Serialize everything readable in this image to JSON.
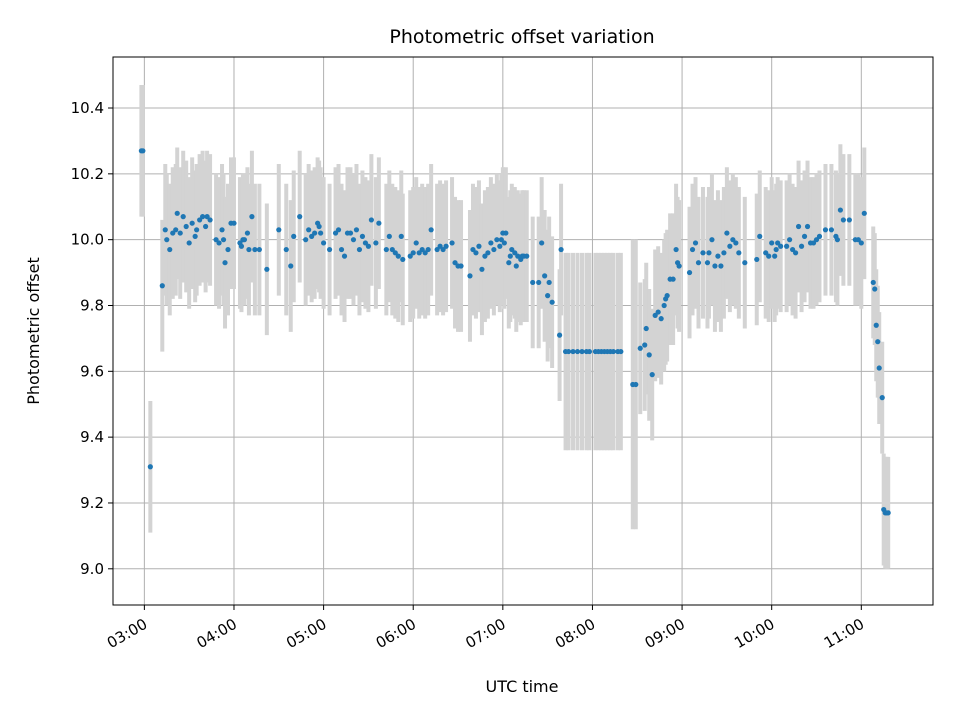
{
  "chart_data": {
    "type": "scatter",
    "title": "Photometric offset variation",
    "xlabel": "UTC time",
    "ylabel": "Photometric offset",
    "xlim": [
      "02:39",
      "11:48"
    ],
    "ylim": [
      8.89,
      10.555
    ],
    "x_ticks": [
      "03:00",
      "04:00",
      "05:00",
      "06:00",
      "07:00",
      "08:00",
      "09:00",
      "10:00",
      "11:00"
    ],
    "y_ticks": [
      9.0,
      9.2,
      9.4,
      9.6,
      9.8,
      10.0,
      10.2,
      10.4
    ],
    "grid": true,
    "marker_color": "#1f77b4",
    "errorbar_color": "#d3d3d3",
    "series": [
      {
        "error": 0.2,
        "points": [
          [
            "02:58",
            10.27
          ],
          [
            "02:59",
            10.27
          ],
          [
            "03:04",
            9.31
          ],
          [
            "03:12",
            9.86
          ],
          [
            "03:14",
            10.03
          ],
          [
            "03:15",
            10.0
          ],
          [
            "03:17",
            9.97
          ],
          [
            "03:19",
            10.02
          ],
          [
            "03:21",
            10.03
          ],
          [
            "03:22",
            10.08
          ],
          [
            "03:24",
            10.02
          ],
          [
            "03:26",
            10.07
          ],
          [
            "03:28",
            10.04
          ],
          [
            "03:30",
            9.99
          ],
          [
            "03:32",
            10.05
          ],
          [
            "03:34",
            10.01
          ],
          [
            "03:35",
            10.03
          ],
          [
            "03:37",
            10.06
          ],
          [
            "03:39",
            10.07
          ],
          [
            "03:41",
            10.04
          ],
          [
            "03:42",
            10.07
          ],
          [
            "03:44",
            10.06
          ],
          [
            "03:48",
            10.0
          ],
          [
            "03:50",
            9.99
          ],
          [
            "03:52",
            10.03
          ],
          [
            "03:53",
            10.0
          ],
          [
            "03:54",
            9.93
          ],
          [
            "03:56",
            9.97
          ],
          [
            "03:58",
            10.05
          ],
          [
            "04:00",
            10.05
          ],
          [
            "04:04",
            9.99
          ],
          [
            "04:05",
            9.98
          ],
          [
            "04:06",
            10.0
          ],
          [
            "04:07",
            10.0
          ],
          [
            "04:09",
            10.02
          ],
          [
            "04:10",
            9.97
          ],
          [
            "04:12",
            10.07
          ],
          [
            "04:14",
            9.97
          ],
          [
            "04:17",
            9.97
          ],
          [
            "04:22",
            9.91
          ],
          [
            "04:30",
            10.03
          ],
          [
            "04:35",
            9.97
          ],
          [
            "04:38",
            9.92
          ],
          [
            "04:40",
            10.01
          ],
          [
            "04:44",
            10.07
          ],
          [
            "04:48",
            10.0
          ],
          [
            "04:50",
            10.03
          ],
          [
            "04:52",
            10.01
          ],
          [
            "04:54",
            10.02
          ],
          [
            "04:56",
            10.05
          ],
          [
            "04:57",
            10.04
          ],
          [
            "04:58",
            10.02
          ],
          [
            "05:00",
            9.99
          ],
          [
            "05:04",
            9.97
          ],
          [
            "05:08",
            10.02
          ],
          [
            "05:10",
            10.03
          ],
          [
            "05:12",
            9.97
          ],
          [
            "05:14",
            9.95
          ],
          [
            "05:16",
            10.02
          ],
          [
            "05:18",
            10.02
          ],
          [
            "05:20",
            10.0
          ],
          [
            "05:22",
            10.03
          ],
          [
            "05:24",
            9.97
          ],
          [
            "05:26",
            10.01
          ],
          [
            "05:28",
            9.99
          ],
          [
            "05:30",
            9.98
          ],
          [
            "05:32",
            10.06
          ],
          [
            "05:35",
            9.99
          ],
          [
            "05:37",
            10.05
          ],
          [
            "05:42",
            9.97
          ],
          [
            "05:44",
            10.01
          ],
          [
            "05:46",
            9.97
          ],
          [
            "05:48",
            9.96
          ],
          [
            "05:50",
            9.95
          ],
          [
            "05:52",
            10.01
          ],
          [
            "05:53",
            9.94
          ],
          [
            "05:58",
            9.95
          ],
          [
            "06:00",
            9.96
          ],
          [
            "06:02",
            9.99
          ],
          [
            "06:04",
            9.96
          ],
          [
            "06:06",
            9.97
          ],
          [
            "06:08",
            9.96
          ],
          [
            "06:10",
            9.97
          ],
          [
            "06:12",
            10.03
          ],
          [
            "06:16",
            9.97
          ],
          [
            "06:18",
            9.98
          ],
          [
            "06:20",
            9.97
          ],
          [
            "06:22",
            9.98
          ],
          [
            "06:26",
            9.99
          ],
          [
            "06:28",
            9.93
          ],
          [
            "06:30",
            9.92
          ],
          [
            "06:32",
            9.92
          ],
          [
            "06:38",
            9.89
          ],
          [
            "06:40",
            9.97
          ],
          [
            "06:42",
            9.96
          ],
          [
            "06:44",
            9.98
          ],
          [
            "06:46",
            9.91
          ],
          [
            "06:48",
            9.95
          ],
          [
            "06:50",
            9.96
          ],
          [
            "06:52",
            9.99
          ],
          [
            "06:54",
            9.97
          ],
          [
            "06:56",
            10.0
          ],
          [
            "06:58",
            9.98
          ],
          [
            "06:59",
            10.0
          ],
          [
            "07:00",
            10.02
          ],
          [
            "07:01",
            9.99
          ],
          [
            "07:02",
            10.02
          ],
          [
            "07:04",
            9.93
          ],
          [
            "07:05",
            9.95
          ],
          [
            "07:06",
            9.97
          ],
          [
            "07:08",
            9.96
          ],
          [
            "07:09",
            9.92
          ],
          [
            "07:10",
            9.95
          ],
          [
            "07:12",
            9.94
          ],
          [
            "07:13",
            9.95
          ],
          [
            "07:14",
            9.95
          ],
          [
            "07:16",
            9.95
          ],
          [
            "07:20",
            9.87
          ],
          [
            "07:24",
            9.87
          ],
          [
            "07:26",
            9.99
          ],
          [
            "07:28",
            9.89
          ],
          [
            "07:30",
            9.83
          ],
          [
            "07:31",
            9.87
          ],
          [
            "07:33",
            9.81
          ],
          [
            "07:38",
            9.71
          ],
          [
            "07:39",
            9.97
          ]
        ]
      },
      {
        "error": 0.3,
        "points": [
          [
            "07:42",
            9.66
          ],
          [
            "07:44",
            9.66
          ],
          [
            "07:47",
            9.66
          ],
          [
            "07:50",
            9.66
          ],
          [
            "07:53",
            9.66
          ],
          [
            "07:56",
            9.66
          ],
          [
            "07:58",
            9.66
          ],
          [
            "08:02",
            9.66
          ],
          [
            "08:04",
            9.66
          ],
          [
            "08:06",
            9.66
          ],
          [
            "08:08",
            9.66
          ],
          [
            "08:10",
            9.66
          ],
          [
            "08:12",
            9.66
          ],
          [
            "08:14",
            9.66
          ],
          [
            "08:17",
            9.66
          ],
          [
            "08:19",
            9.66
          ]
        ]
      },
      {
        "error": 0.44,
        "points": [
          [
            "08:27",
            9.56
          ],
          [
            "08:29",
            9.56
          ]
        ]
      },
      {
        "error": 0.2,
        "points": [
          [
            "08:32",
            9.67
          ],
          [
            "08:35",
            9.68
          ],
          [
            "08:36",
            9.73
          ],
          [
            "08:38",
            9.65
          ],
          [
            "08:40",
            9.59
          ],
          [
            "08:42",
            9.77
          ],
          [
            "08:44",
            9.78
          ],
          [
            "08:46",
            9.76
          ],
          [
            "08:48",
            9.8
          ],
          [
            "08:49",
            9.82
          ],
          [
            "08:50",
            9.83
          ],
          [
            "08:52",
            9.88
          ],
          [
            "08:54",
            9.88
          ],
          [
            "08:56",
            9.97
          ],
          [
            "08:57",
            9.93
          ],
          [
            "08:58",
            9.92
          ],
          [
            "09:05",
            9.9
          ],
          [
            "09:07",
            9.97
          ],
          [
            "09:09",
            9.99
          ],
          [
            "09:11",
            9.93
          ],
          [
            "09:14",
            9.96
          ],
          [
            "09:17",
            9.93
          ],
          [
            "09:18",
            9.96
          ],
          [
            "09:20",
            10.0
          ],
          [
            "09:22",
            9.92
          ],
          [
            "09:24",
            9.95
          ],
          [
            "09:26",
            9.92
          ],
          [
            "09:28",
            9.96
          ],
          [
            "09:30",
            10.02
          ],
          [
            "09:32",
            9.98
          ],
          [
            "09:34",
            10.0
          ],
          [
            "09:36",
            9.99
          ],
          [
            "09:38",
            9.96
          ],
          [
            "09:42",
            9.93
          ],
          [
            "09:50",
            9.94
          ],
          [
            "09:52",
            10.01
          ],
          [
            "09:56",
            9.96
          ],
          [
            "09:58",
            9.95
          ],
          [
            "10:00",
            9.99
          ],
          [
            "10:02",
            9.95
          ],
          [
            "10:03",
            9.97
          ],
          [
            "10:04",
            9.99
          ],
          [
            "10:06",
            9.98
          ],
          [
            "10:10",
            9.98
          ],
          [
            "10:12",
            10.0
          ],
          [
            "10:14",
            9.97
          ],
          [
            "10:16",
            9.96
          ],
          [
            "10:18",
            10.04
          ],
          [
            "10:20",
            9.98
          ],
          [
            "10:22",
            10.01
          ],
          [
            "10:24",
            10.04
          ],
          [
            "10:26",
            9.99
          ],
          [
            "10:28",
            9.99
          ],
          [
            "10:30",
            10.0
          ],
          [
            "10:32",
            10.01
          ],
          [
            "10:36",
            10.03
          ],
          [
            "10:40",
            10.03
          ],
          [
            "10:43",
            10.01
          ],
          [
            "10:44",
            10.0
          ],
          [
            "10:46",
            10.09
          ],
          [
            "10:48",
            10.06
          ],
          [
            "10:52",
            10.06
          ],
          [
            "10:56",
            10.0
          ],
          [
            "10:58",
            10.0
          ],
          [
            "11:00",
            9.99
          ],
          [
            "11:02",
            10.08
          ]
        ]
      },
      {
        "error": 0.17,
        "points": [
          [
            "11:08",
            9.87
          ],
          [
            "11:09",
            9.85
          ],
          [
            "11:10",
            9.74
          ],
          [
            "11:11",
            9.69
          ],
          [
            "11:12",
            9.61
          ],
          [
            "11:14",
            9.52
          ],
          [
            "11:15",
            9.18
          ],
          [
            "11:16",
            9.17
          ],
          [
            "11:17",
            9.17
          ],
          [
            "11:18",
            9.17
          ]
        ]
      }
    ]
  }
}
